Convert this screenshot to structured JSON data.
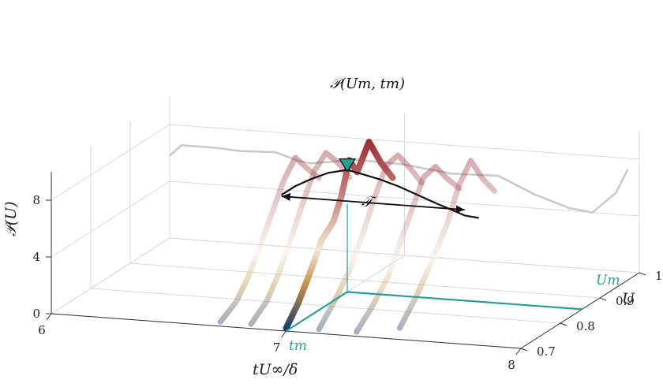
{
  "chart_data": {
    "type": "line",
    "projection": "3d",
    "x_label": "tU∞/δ",
    "y_label": "U",
    "z_label": "𝒫(U)",
    "x_ticks": [
      "6",
      "7",
      "8"
    ],
    "y_ticks": [
      "0.7",
      "0.8",
      "0.9",
      "1"
    ],
    "z_ticks": [
      "0",
      "4",
      "8"
    ],
    "xlim": [
      6,
      8
    ],
    "ylim": [
      0.7,
      1.0
    ],
    "zlim": [
      0,
      10
    ],
    "grid": true,
    "colors": {
      "high": "#9b2f35",
      "mid": "#f3e7d6",
      "low": "#1f3a6e",
      "accent": "#2a9d99",
      "envelope": "#111111",
      "wall_projection": "#c8c8c8"
    },
    "markers": {
      "peak_label": "𝒫(Um, tm)",
      "duration_label": "𝒯",
      "um_label": "Um",
      "tm_label": "tm",
      "t_m": 7.0,
      "U_m": 0.855,
      "P_peak": 8.6,
      "duration_start": 6.72,
      "duration_end": 7.5
    },
    "envelope": {
      "t": [
        6.72,
        6.78,
        6.85,
        6.92,
        7.0,
        7.06,
        7.14,
        7.22,
        7.3,
        7.38,
        7.45,
        7.5,
        7.56
      ],
      "P": [
        6.5,
        7.2,
        7.8,
        8.3,
        8.6,
        8.4,
        8.1,
        7.7,
        7.2,
        6.7,
        6.3,
        6.0,
        5.9
      ]
    },
    "series": [
      {
        "t": 6.72,
        "U": [
          0.7,
          0.74,
          0.77,
          0.8,
          0.83,
          0.86,
          0.89,
          0.92,
          0.95
        ],
        "P": [
          0.3,
          1.0,
          2.2,
          3.8,
          5.6,
          7.4,
          8.5,
          7.2,
          6.0
        ],
        "highlighted": false
      },
      {
        "t": 6.85,
        "U": [
          0.7,
          0.74,
          0.77,
          0.8,
          0.83,
          0.86,
          0.89,
          0.92,
          0.95
        ],
        "P": [
          0.3,
          1.2,
          2.6,
          4.4,
          6.4,
          8.2,
          9.0,
          7.8,
          6.2
        ],
        "highlighted": false
      },
      {
        "t": 7.0,
        "U": [
          0.7,
          0.73,
          0.76,
          0.79,
          0.82,
          0.84,
          0.86,
          0.88,
          0.91,
          0.94,
          0.97
        ],
        "P": [
          0.2,
          1.4,
          3.0,
          4.8,
          5.6,
          7.0,
          9.2,
          8.0,
          9.6,
          7.6,
          6.0
        ],
        "highlighted": true
      },
      {
        "t": 7.14,
        "U": [
          0.7,
          0.74,
          0.78,
          0.81,
          0.84,
          0.87,
          0.9,
          0.93,
          0.96
        ],
        "P": [
          0.3,
          1.6,
          3.2,
          5.0,
          7.0,
          8.8,
          9.0,
          7.6,
          6.0
        ],
        "highlighted": false
      },
      {
        "t": 7.3,
        "U": [
          0.7,
          0.74,
          0.78,
          0.81,
          0.84,
          0.87,
          0.9,
          0.93,
          0.96
        ],
        "P": [
          0.3,
          1.4,
          2.8,
          4.6,
          6.4,
          8.2,
          8.4,
          7.0,
          5.8
        ],
        "highlighted": false
      },
      {
        "t": 7.45,
        "U": [
          0.72,
          0.76,
          0.8,
          0.84,
          0.87,
          0.9,
          0.93,
          0.96
        ],
        "P": [
          0.4,
          1.8,
          3.6,
          5.6,
          7.8,
          9.0,
          7.2,
          5.8
        ],
        "highlighted": false
      }
    ],
    "back_wall_projection": {
      "t": [
        6.0,
        6.05,
        6.2,
        6.3,
        6.45,
        6.55,
        6.6,
        6.8,
        7.0,
        7.2,
        7.4,
        7.55,
        7.7,
        7.8,
        7.9,
        7.95
      ],
      "P": [
        5.8,
        6.6,
        6.6,
        6.5,
        6.6,
        6.1,
        6.0,
        6.5,
        6.4,
        6.0,
        6.1,
        5.0,
        4.2,
        4.0,
        5.5,
        7.2
      ]
    }
  }
}
